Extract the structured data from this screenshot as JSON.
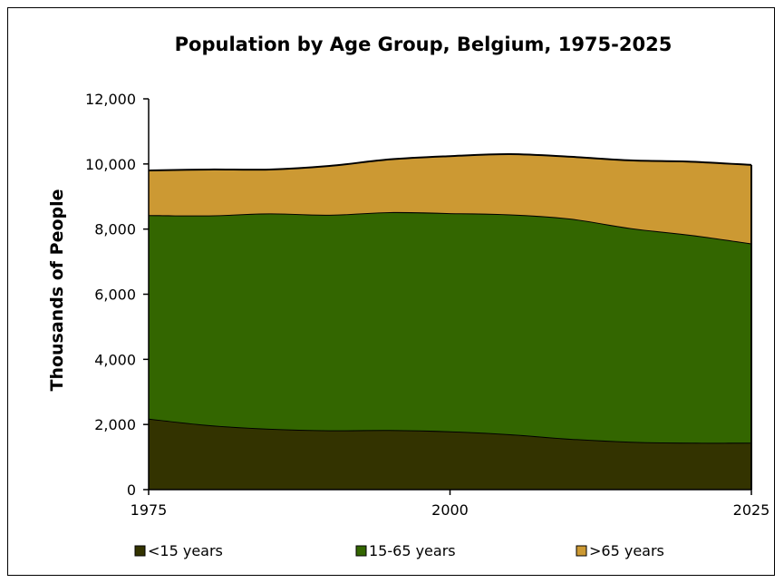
{
  "chart_data": {
    "type": "area",
    "stacked": true,
    "title": "Population by Age Group, Belgium, 1975-2025",
    "xlabel": "",
    "ylabel": "Thousands of People",
    "x": [
      1975,
      1980,
      1985,
      1990,
      1995,
      2000,
      2005,
      2010,
      2015,
      2020,
      2025
    ],
    "x_ticks": [
      "1975",
      "2000",
      "2025"
    ],
    "y_ticks": [
      "0",
      "2,000",
      "4,000",
      "6,000",
      "8,000",
      "10,000",
      "12,000"
    ],
    "ylim": [
      0,
      12000
    ],
    "grid": false,
    "legend_position": "bottom",
    "series": [
      {
        "name": "<15 years",
        "color": "#333300",
        "values": [
          2180,
          1980,
          1870,
          1820,
          1830,
          1790,
          1700,
          1560,
          1470,
          1440,
          1440
        ]
      },
      {
        "name": "15-65 years",
        "color": "#336600",
        "values": [
          6250,
          6440,
          6610,
          6620,
          6690,
          6700,
          6750,
          6760,
          6560,
          6380,
          6120
        ]
      },
      {
        "name": ">65 years",
        "color": "#CC9933",
        "values": [
          1370,
          1410,
          1350,
          1500,
          1620,
          1750,
          1850,
          1900,
          2080,
          2250,
          2410
        ]
      }
    ]
  }
}
